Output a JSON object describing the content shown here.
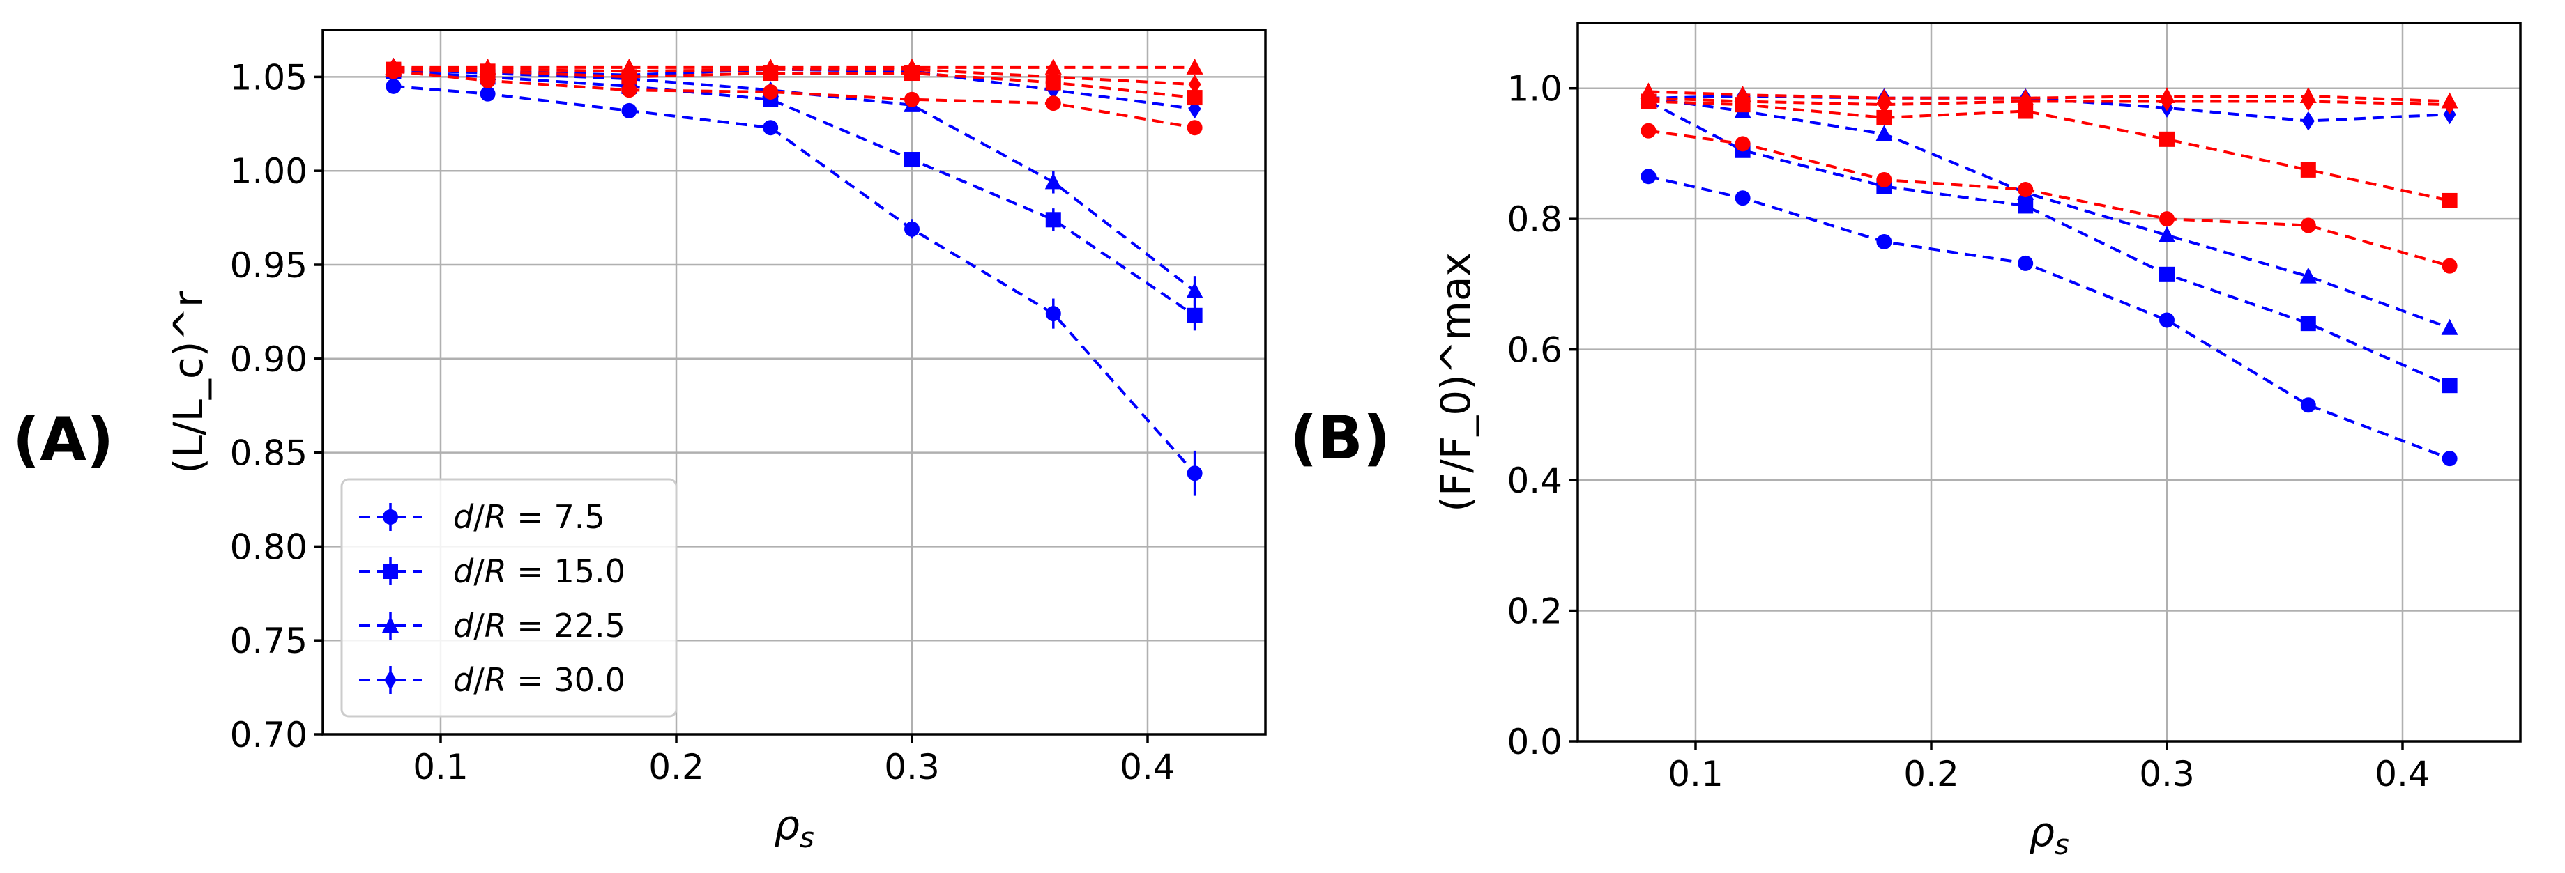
{
  "chart_data": [
    {
      "type": "line",
      "panel_label": "(A)",
      "xlabel_sym": "ρ",
      "xlabel_sub": "s",
      "ylabel": "(L/L_c)^r",
      "xlim": [
        0.05,
        0.45
      ],
      "ylim": [
        0.7,
        1.075
      ],
      "xticks": [
        0.1,
        0.2,
        0.3,
        0.4
      ],
      "xtick_labels": [
        "0.1",
        "0.2",
        "0.3",
        "0.4"
      ],
      "yticks": [
        0.7,
        0.75,
        0.8,
        0.85,
        0.9,
        0.95,
        1.0,
        1.05
      ],
      "ytick_labels": [
        "0.70",
        "0.75",
        "0.80",
        "0.85",
        "0.90",
        "0.95",
        "1.00",
        "1.05"
      ],
      "grid": true,
      "legend_position": "lower-left",
      "x": [
        0.08,
        0.12,
        0.18,
        0.24,
        0.3,
        0.36,
        0.42
      ],
      "series": [
        {
          "name": "d/R = 7.5",
          "color": "#0000ff",
          "marker": "circle",
          "values": [
            1.045,
            1.041,
            1.032,
            1.023,
            0.969,
            0.924,
            0.839
          ],
          "errors": [
            0.002,
            0.002,
            0.002,
            0.002,
            0.005,
            0.008,
            0.012
          ]
        },
        {
          "name": "d/R = 15.0",
          "color": "#0000ff",
          "marker": "square",
          "values": [
            1.053,
            1.05,
            1.045,
            1.038,
            1.006,
            0.974,
            0.923
          ],
          "errors": [
            0.002,
            0.002,
            0.002,
            0.002,
            0.004,
            0.006,
            0.008
          ]
        },
        {
          "name": "d/R = 22.5",
          "color": "#0000ff",
          "marker": "triangle",
          "values": [
            1.054,
            1.052,
            1.049,
            1.043,
            1.035,
            0.994,
            0.936
          ],
          "errors": [
            0.002,
            0.002,
            0.002,
            0.002,
            0.003,
            0.006,
            0.008
          ]
        },
        {
          "name": "d/R = 30.0",
          "color": "#0000ff",
          "marker": "diamond",
          "values": [
            1.055,
            1.053,
            1.051,
            1.054,
            1.053,
            1.043,
            1.033
          ],
          "errors": [
            0.002,
            0.002,
            0.002,
            0.002,
            0.002,
            0.003,
            0.004
          ]
        },
        {
          "name": "red-circle",
          "color": "#ff0000",
          "marker": "circle",
          "values": [
            1.053,
            1.048,
            1.043,
            1.042,
            1.038,
            1.036,
            1.023
          ],
          "errors": [
            0.002,
            0.002,
            0.002,
            0.002,
            0.002,
            0.002,
            0.002
          ]
        },
        {
          "name": "red-square",
          "color": "#ff0000",
          "marker": "square",
          "values": [
            1.054,
            1.053,
            1.05,
            1.052,
            1.052,
            1.047,
            1.039
          ],
          "errors": [
            0.002,
            0.002,
            0.002,
            0.002,
            0.002,
            0.002,
            0.002
          ]
        },
        {
          "name": "red-triangle",
          "color": "#ff0000",
          "marker": "triangle",
          "values": [
            1.055,
            1.055,
            1.055,
            1.055,
            1.055,
            1.055,
            1.055
          ],
          "errors": [
            0.002,
            0.002,
            0.002,
            0.002,
            0.002,
            0.002,
            0.002
          ]
        },
        {
          "name": "red-diamond",
          "color": "#ff0000",
          "marker": "diamond",
          "values": [
            1.055,
            1.054,
            1.053,
            1.054,
            1.054,
            1.05,
            1.046
          ],
          "errors": [
            0.002,
            0.002,
            0.002,
            0.002,
            0.002,
            0.002,
            0.002
          ]
        }
      ],
      "legend": [
        {
          "sym": "d",
          "mid": "/",
          "sym2": "R",
          "rest": " = 7.5",
          "marker": "circle"
        },
        {
          "sym": "d",
          "mid": "/",
          "sym2": "R",
          "rest": " = 15.0",
          "marker": "square"
        },
        {
          "sym": "d",
          "mid": "/",
          "sym2": "R",
          "rest": " = 22.5",
          "marker": "triangle"
        },
        {
          "sym": "d",
          "mid": "/",
          "sym2": "R",
          "rest": " = 30.0",
          "marker": "diamond"
        }
      ]
    },
    {
      "type": "line",
      "panel_label": "(B)",
      "xlabel_sym": "ρ",
      "xlabel_sub": "s",
      "ylabel": "(F/F_0)^max",
      "xlim": [
        0.05,
        0.45
      ],
      "ylim": [
        0.0,
        1.1
      ],
      "xticks": [
        0.1,
        0.2,
        0.3,
        0.4
      ],
      "xtick_labels": [
        "0.1",
        "0.2",
        "0.3",
        "0.4"
      ],
      "yticks": [
        0.0,
        0.2,
        0.4,
        0.6,
        0.8,
        1.0
      ],
      "ytick_labels": [
        "0.0",
        "0.2",
        "0.4",
        "0.6",
        "0.8",
        "1.0"
      ],
      "grid": true,
      "x": [
        0.08,
        0.12,
        0.18,
        0.24,
        0.3,
        0.36,
        0.42
      ],
      "series": [
        {
          "name": "blue-circle",
          "color": "#0000ff",
          "marker": "circle",
          "values": [
            0.865,
            0.832,
            0.765,
            0.732,
            0.645,
            0.515,
            0.433
          ]
        },
        {
          "name": "blue-square",
          "color": "#0000ff",
          "marker": "square",
          "values": [
            0.98,
            0.905,
            0.85,
            0.82,
            0.715,
            0.64,
            0.545
          ]
        },
        {
          "name": "blue-triangle",
          "color": "#0000ff",
          "marker": "triangle",
          "values": [
            0.985,
            0.965,
            0.93,
            0.84,
            0.775,
            0.712,
            0.633
          ]
        },
        {
          "name": "blue-diamond",
          "color": "#0000ff",
          "marker": "diamond",
          "values": [
            0.985,
            0.988,
            0.985,
            0.985,
            0.97,
            0.95,
            0.96
          ]
        },
        {
          "name": "red-circle",
          "color": "#ff0000",
          "marker": "circle",
          "values": [
            0.935,
            0.915,
            0.86,
            0.845,
            0.8,
            0.79,
            0.728
          ]
        },
        {
          "name": "red-square",
          "color": "#ff0000",
          "marker": "square",
          "values": [
            0.98,
            0.975,
            0.955,
            0.965,
            0.922,
            0.875,
            0.828
          ]
        },
        {
          "name": "red-triangle",
          "color": "#ff0000",
          "marker": "triangle",
          "values": [
            0.995,
            0.99,
            0.985,
            0.985,
            0.988,
            0.988,
            0.98
          ]
        },
        {
          "name": "red-diamond",
          "color": "#ff0000",
          "marker": "diamond",
          "values": [
            0.985,
            0.98,
            0.975,
            0.98,
            0.98,
            0.98,
            0.975
          ]
        }
      ]
    }
  ]
}
